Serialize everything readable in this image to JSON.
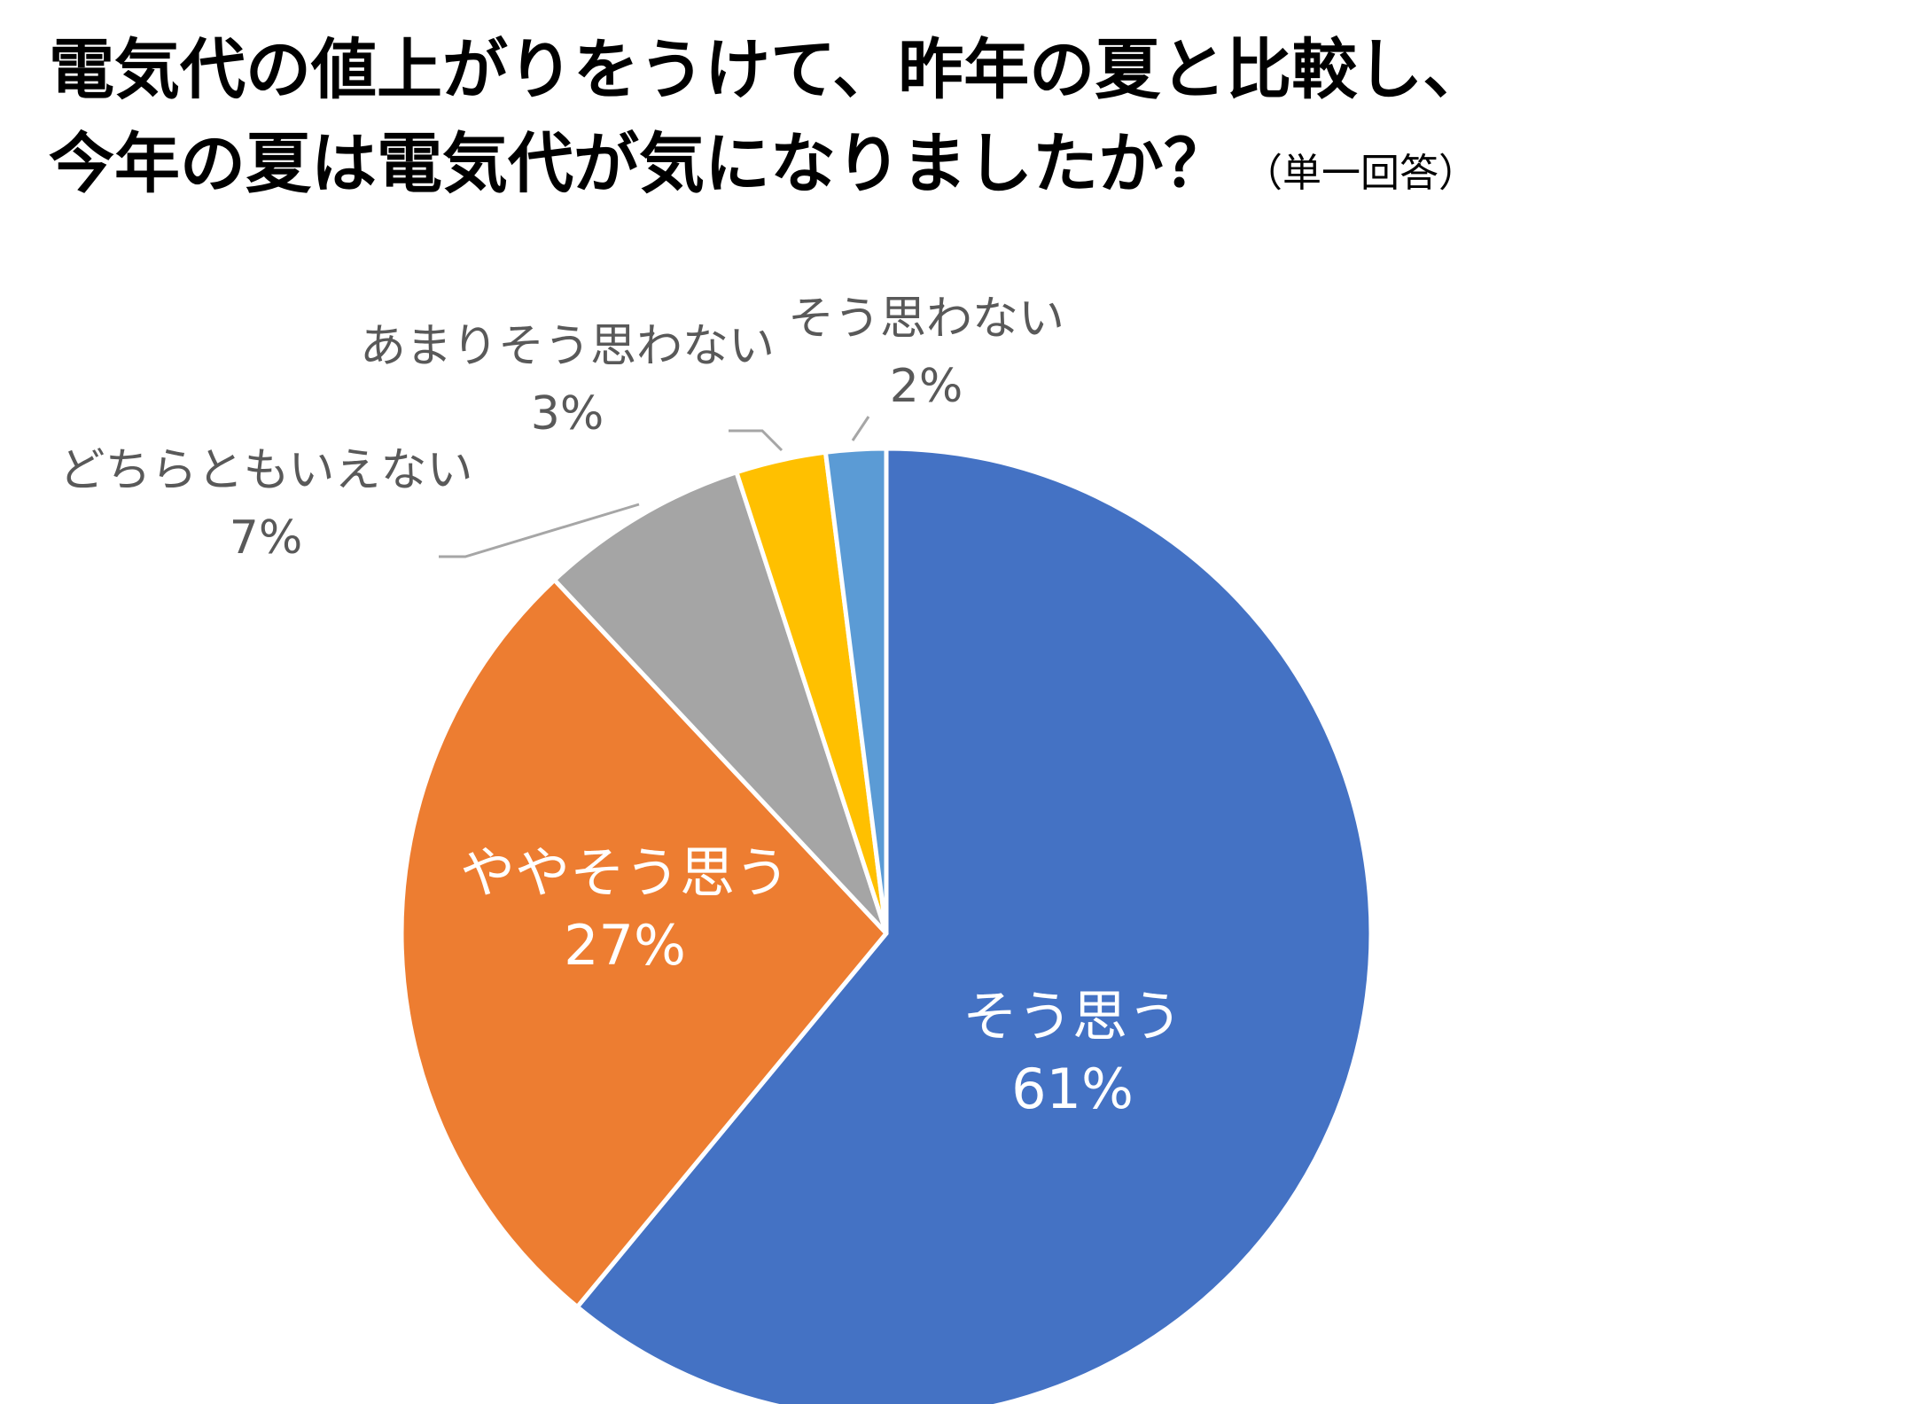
{
  "title": {
    "line1": "電気代の値上がりをうけて、昨年の夏と比較し、",
    "line2": "今年の夏は電気代が気になりましたか？",
    "note": "（単一回答）"
  },
  "chart_data": {
    "type": "pie",
    "start": "12 o'clock, clockwise",
    "slices": [
      {
        "label": "そう思う",
        "value": 61,
        "display": "61%",
        "color": "#4472C4",
        "label_color": "#ffffff",
        "label_placement": "inside"
      },
      {
        "label": "ややそう思う",
        "value": 27,
        "display": "27%",
        "color": "#ED7D31",
        "label_color": "#ffffff",
        "label_placement": "inside"
      },
      {
        "label": "どちらともいえない",
        "value": 7,
        "display": "7%",
        "color": "#A5A5A5",
        "label_color": "#595959",
        "label_placement": "outside"
      },
      {
        "label": "あまりそう思わない",
        "value": 3,
        "display": "3%",
        "color": "#FFC000",
        "label_color": "#595959",
        "label_placement": "outside"
      },
      {
        "label": "そう思わない",
        "value": 2,
        "display": "2%",
        "color": "#5B9BD5",
        "label_color": "#595959",
        "label_placement": "outside"
      }
    ]
  }
}
